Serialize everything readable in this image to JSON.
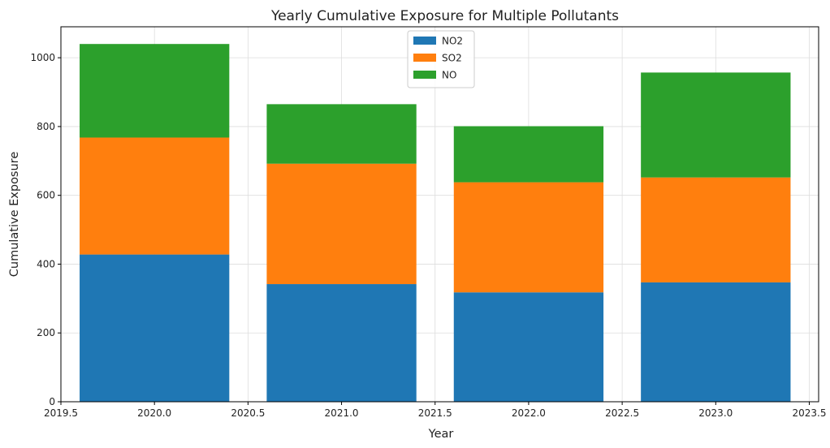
{
  "chart_data": {
    "type": "bar",
    "stacked": true,
    "title": "Yearly Cumulative Exposure for Multiple Pollutants",
    "xlabel": "Year",
    "ylabel": "Cumulative Exposure",
    "x": [
      2020,
      2021,
      2022,
      2023
    ],
    "xlim": [
      2019.5,
      2023.55
    ],
    "ylim": [
      0,
      1090
    ],
    "bar_width": 0.8,
    "x_ticks": [
      2019.5,
      2020.0,
      2020.5,
      2021.0,
      2021.5,
      2022.0,
      2022.5,
      2023.0,
      2023.5
    ],
    "x_tick_labels": [
      "2019.5",
      "2020.0",
      "2020.5",
      "2021.0",
      "2021.5",
      "2022.0",
      "2022.5",
      "2023.0",
      "2023.5"
    ],
    "y_ticks": [
      0,
      200,
      400,
      600,
      800,
      1000
    ],
    "y_tick_labels": [
      "0",
      "200",
      "400",
      "600",
      "800",
      "1000"
    ],
    "grid": true,
    "legend_position": "top-center",
    "series": [
      {
        "name": "NO2",
        "color": "#1f77b4",
        "values": [
          428,
          342,
          318,
          347
        ]
      },
      {
        "name": "SO2",
        "color": "#ff7f0e",
        "values": [
          340,
          350,
          320,
          305
        ]
      },
      {
        "name": "NO",
        "color": "#2ca02c",
        "values": [
          272,
          173,
          163,
          305
        ]
      }
    ]
  }
}
